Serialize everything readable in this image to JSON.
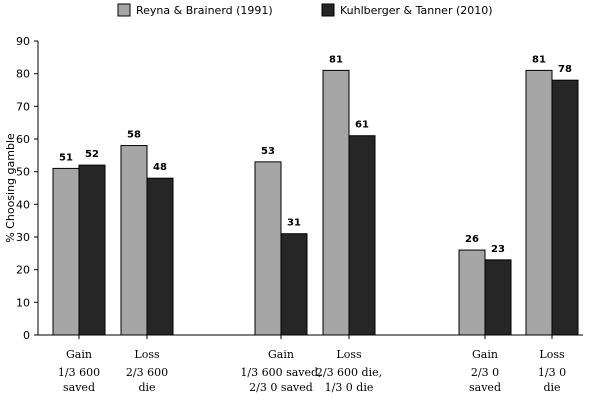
{
  "chart_data": {
    "type": "bar",
    "ylabel": "% Choosing gamble",
    "ylim": [
      0,
      90
    ],
    "yticks": [
      0,
      10,
      20,
      30,
      40,
      50,
      60,
      70,
      80,
      90
    ],
    "legend_position": "top",
    "grid": false,
    "series": [
      {
        "name": "Reyna & Brainerd (1991)",
        "color": "#a6a6a6",
        "values": [
          51,
          58,
          53,
          81,
          26,
          81
        ]
      },
      {
        "name": "Kuhlberger & Tanner (2010)",
        "color": "#262626",
        "values": [
          52,
          48,
          31,
          61,
          23,
          78
        ]
      }
    ],
    "categories": [
      {
        "label": "Gain",
        "sub": [
          "1/3 600",
          "saved"
        ]
      },
      {
        "label": "Loss",
        "sub": [
          "2/3 600",
          "die"
        ]
      },
      {
        "label": "Gain",
        "sub": [
          "1/3 600 saved,",
          "2/3 0 saved"
        ]
      },
      {
        "label": "Loss",
        "sub": [
          "2/3 600 die,",
          "1/3 0 die"
        ]
      },
      {
        "label": "Gain",
        "sub": [
          "2/3 0",
          "saved"
        ]
      },
      {
        "label": "Loss",
        "sub": [
          "1/3 0",
          "die"
        ]
      }
    ]
  }
}
